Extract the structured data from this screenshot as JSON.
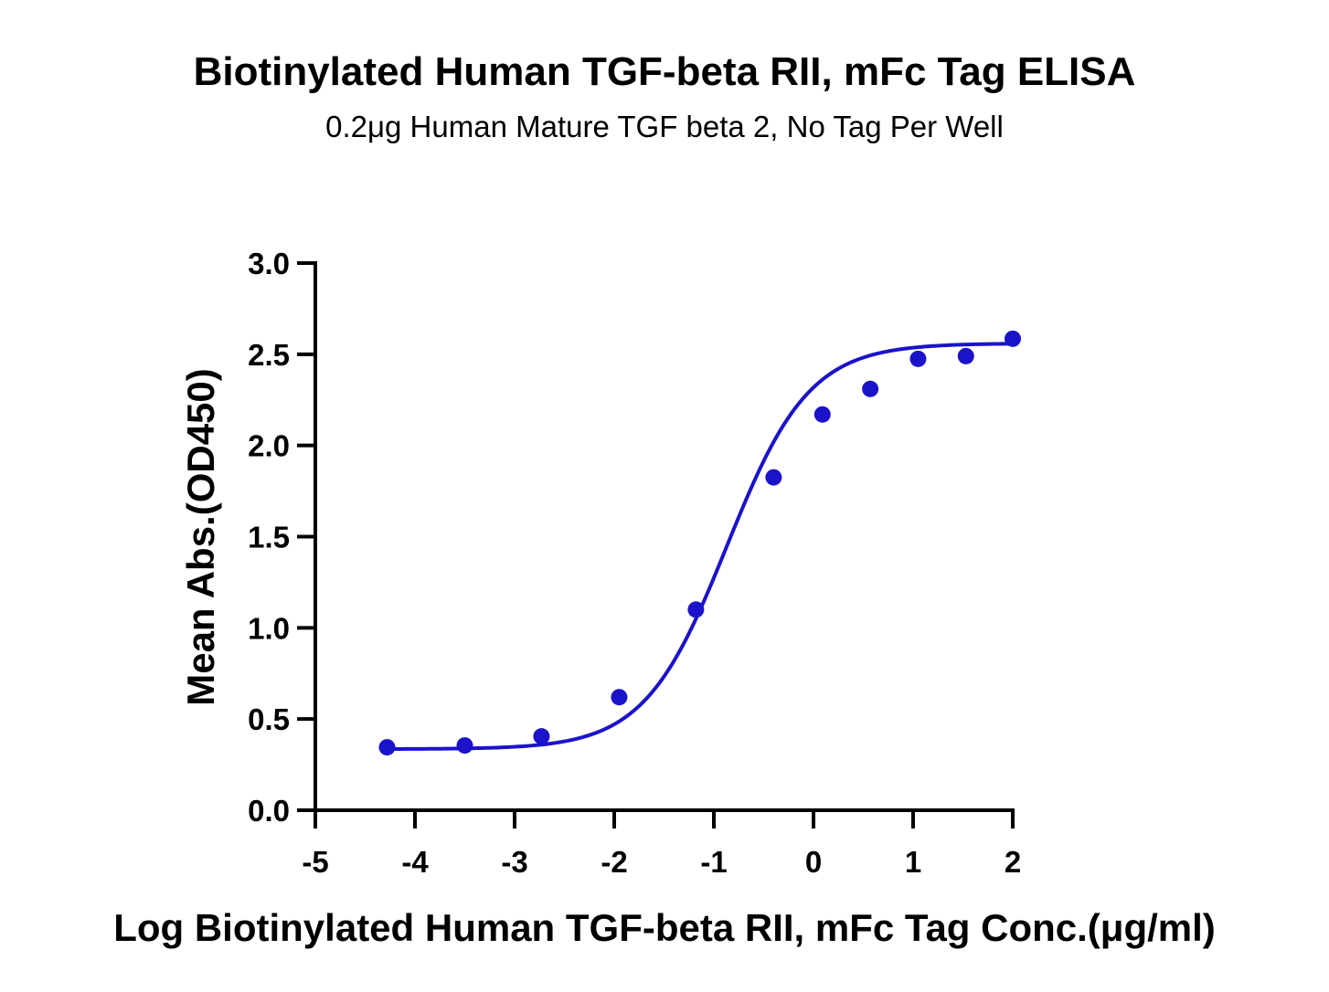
{
  "chart_data": {
    "type": "scatter",
    "title": "Biotinylated Human TGF-beta RII, mFc Tag ELISA",
    "subtitle": "0.2μg Human Mature TGF beta 2, No Tag Per Well",
    "xlabel": "Log Biotinylated Human TGF-beta RII, mFc Tag Conc.(μg/ml)",
    "ylabel": "Mean Abs.(OD450)",
    "xlim": [
      -5,
      2
    ],
    "ylim": [
      0,
      3.0
    ],
    "x_ticks": [
      "-5",
      "-4",
      "-3",
      "-2",
      "-1",
      "0",
      "1",
      "2"
    ],
    "y_ticks": [
      "0.0",
      "0.5",
      "1.0",
      "1.5",
      "2.0",
      "2.5",
      "3.0"
    ],
    "grid": false,
    "legend": "none",
    "color": "#1a13c9",
    "series": [
      {
        "x": [
          -4.28,
          -3.5,
          -2.73,
          -1.95,
          -1.18,
          -0.4,
          0.09,
          0.57,
          1.05,
          1.53,
          2.0
        ],
        "y": [
          0.345,
          0.355,
          0.405,
          0.62,
          1.1,
          1.825,
          2.17,
          2.31,
          2.475,
          2.49,
          2.585
        ]
      }
    ],
    "fit": {
      "type": "4PL",
      "bottom": 0.335,
      "top": 2.56,
      "logEC50": -0.87,
      "hill": 1.05
    }
  }
}
